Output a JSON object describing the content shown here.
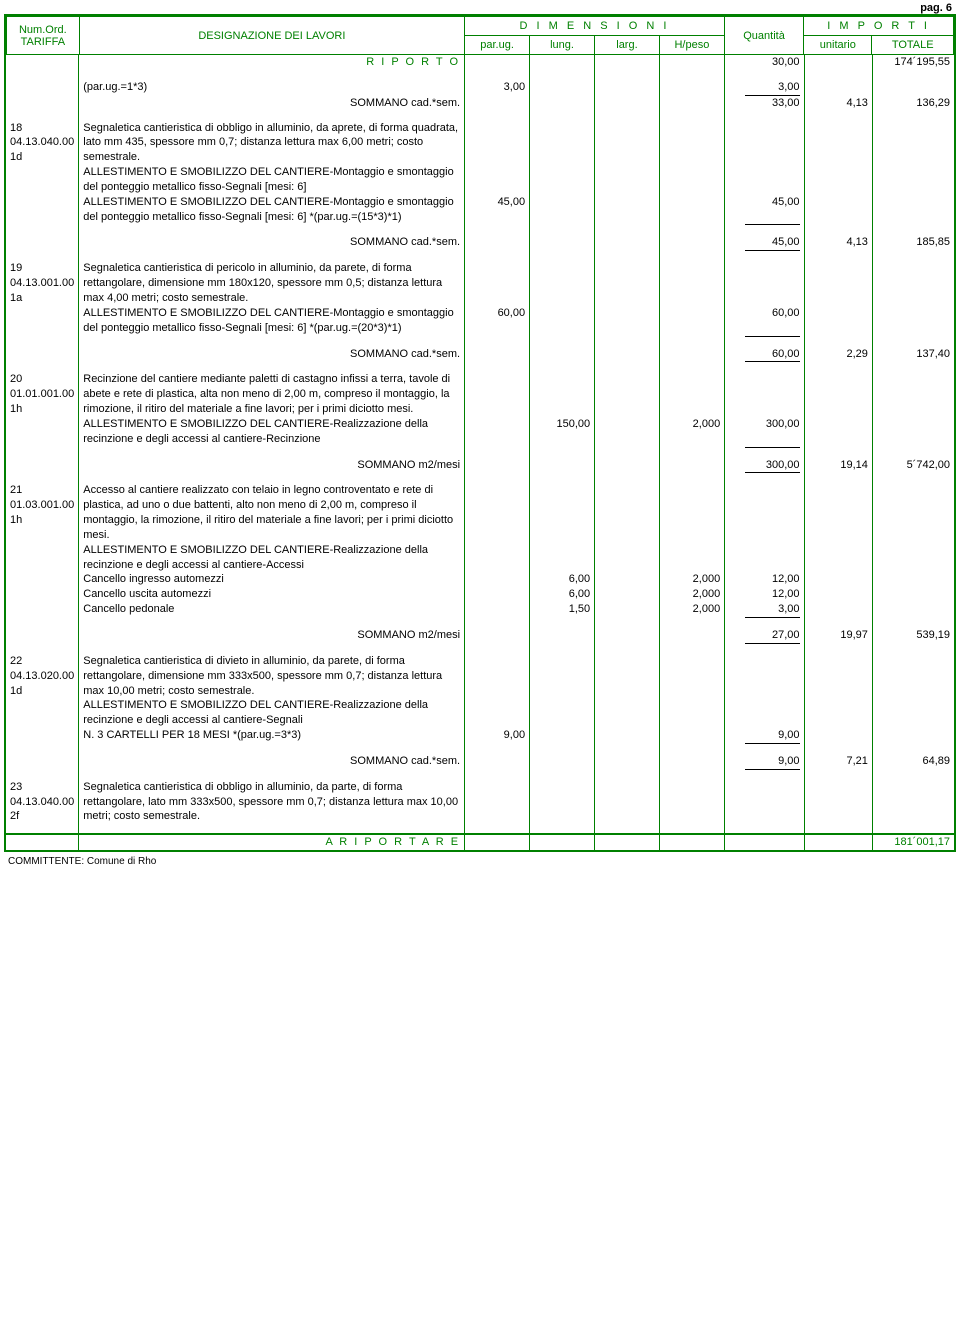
{
  "page_label": "pag. 6",
  "colors": {
    "border": "#008000",
    "text": "#000000",
    "header_text": "#008000"
  },
  "header": {
    "col1_a": "Num.Ord.",
    "col1_b": "TARIFFA",
    "col2": "DESIGNAZIONE DEI LAVORI",
    "dim_title": "D I M E N S I O N I",
    "dim_cols": [
      "par.ug.",
      "lung.",
      "larg.",
      "H/peso"
    ],
    "qty": "Quantità",
    "imp_title": "I M P O R T I",
    "imp_cols": [
      "unitario",
      "TOTALE"
    ]
  },
  "riporto": {
    "label": "R I P O R T O",
    "qty": "30,00",
    "tot": "174´195,55"
  },
  "preline": {
    "desc": "(par.ug.=1*3)",
    "parug": "3,00",
    "qty": "3,00",
    "sum_label": "SOMMANO cad.*sem.",
    "sum_qty": "33,00",
    "sum_unit": "4,13",
    "sum_tot": "136,29"
  },
  "items": [
    {
      "num": "18",
      "code": "04.13.040.00 1d",
      "desc": "Segnaletica cantieristica di obbligo in alluminio, da aprete, di forma quadrata, lato mm 435, spessore mm 0,7; distanza lettura max 6,00 metri; costo semestrale.\nALLESTIMENTO E SMOBILIZZO DEL CANTIERE-Montaggio e smontaggio del ponteggio metallico fisso-Segnali [mesi: 6]\nALLESTIMENTO E SMOBILIZZO DEL CANTIERE-Montaggio e smontaggio del ponteggio metallico fisso-Segnali [mesi: 6] *(par.ug.=(15*3)*1)",
      "lines": [
        {
          "parug": "45,00",
          "qty": "45,00"
        }
      ],
      "sum_label": "SOMMANO cad.*sem.",
      "sum_qty": "45,00",
      "sum_unit": "4,13",
      "sum_tot": "185,85"
    },
    {
      "num": "19",
      "code": "04.13.001.00 1a",
      "desc": "Segnaletica cantieristica di pericolo in alluminio, da parete, di forma rettangolare, dimensione mm 180x120, spessore mm 0,5; distanza lettura max 4,00 metri; costo semestrale.\nALLESTIMENTO E SMOBILIZZO DEL CANTIERE-Montaggio e smontaggio del ponteggio metallico fisso-Segnali [mesi: 6] *(par.ug.=(20*3)*1)",
      "lines": [
        {
          "parug": "60,00",
          "qty": "60,00"
        }
      ],
      "sum_label": "SOMMANO cad.*sem.",
      "sum_qty": "60,00",
      "sum_unit": "2,29",
      "sum_tot": "137,40"
    },
    {
      "num": "20",
      "code": "01.01.001.00 1h",
      "desc": "Recinzione del cantiere mediante paletti di castagno infissi a terra, tavole di abete e rete di plastica, alta non meno di 2,00 m, compreso il montaggio, la rimozione, il ritiro del materiale a fine lavori; per i primi diciotto mesi.\nALLESTIMENTO E SMOBILIZZO DEL CANTIERE-Realizzazione della recinzione e degli accessi al cantiere-Recinzione",
      "lines": [
        {
          "lung": "150,00",
          "hpeso": "2,000",
          "qty": "300,00"
        }
      ],
      "sum_label": "SOMMANO m2/mesi",
      "sum_qty": "300,00",
      "sum_unit": "19,14",
      "sum_tot": "5´742,00"
    },
    {
      "num": "21",
      "code": "01.03.001.00 1h",
      "desc": "Accesso al cantiere realizzato con telaio in legno controventato e rete di plastica, ad uno o due battenti, alto non meno di 2,00 m, compreso il montaggio, la rimozione, il ritiro del materiale a fine lavori; per i primi diciotto mesi.\nALLESTIMENTO E SMOBILIZZO DEL CANTIERE-Realizzazione della recinzione e degli accessi al cantiere-Accessi",
      "extra": [
        {
          "label": "Cancello ingresso automezzi",
          "lung": "6,00",
          "hpeso": "2,000",
          "qty": "12,00"
        },
        {
          "label": "Cancello uscita automezzi",
          "lung": "6,00",
          "hpeso": "2,000",
          "qty": "12,00"
        },
        {
          "label": "Cancello pedonale",
          "lung": "1,50",
          "hpeso": "2,000",
          "qty": "3,00"
        }
      ],
      "sum_label": "SOMMANO m2/mesi",
      "sum_qty": "27,00",
      "sum_unit": "19,97",
      "sum_tot": "539,19"
    },
    {
      "num": "22",
      "code": "04.13.020.00 1d",
      "desc": "Segnaletica cantieristica di divieto in alluminio, da parete, di forma rettangolare, dimensione mm 333x500, spessore mm 0,7; distanza lettura max 10,00 metri; costo semestrale.\nALLESTIMENTO E SMOBILIZZO DEL CANTIERE-Realizzazione della recinzione e degli accessi al cantiere-Segnali\nN. 3 CARTELLI PER 18 MESI *(par.ug.=3*3)",
      "lines": [
        {
          "parug": "9,00",
          "qty": "9,00"
        }
      ],
      "sum_label": "SOMMANO cad.*sem.",
      "sum_qty": "9,00",
      "sum_unit": "7,21",
      "sum_tot": "64,89"
    },
    {
      "num": "23",
      "code": "04.13.040.00 2f",
      "desc": "Segnaletica cantieristica di obbligo in alluminio, da parte, di forma rettangolare, lato mm  333x500, spessore mm 0,7; distanza lettura max 10,00 metri; costo semestrale.",
      "no_sum": true
    }
  ],
  "riportare": {
    "label": "A   R I P O R T A R E",
    "tot": "181´001,17"
  },
  "committente": "COMMITTENTE: Comune di Rho"
}
